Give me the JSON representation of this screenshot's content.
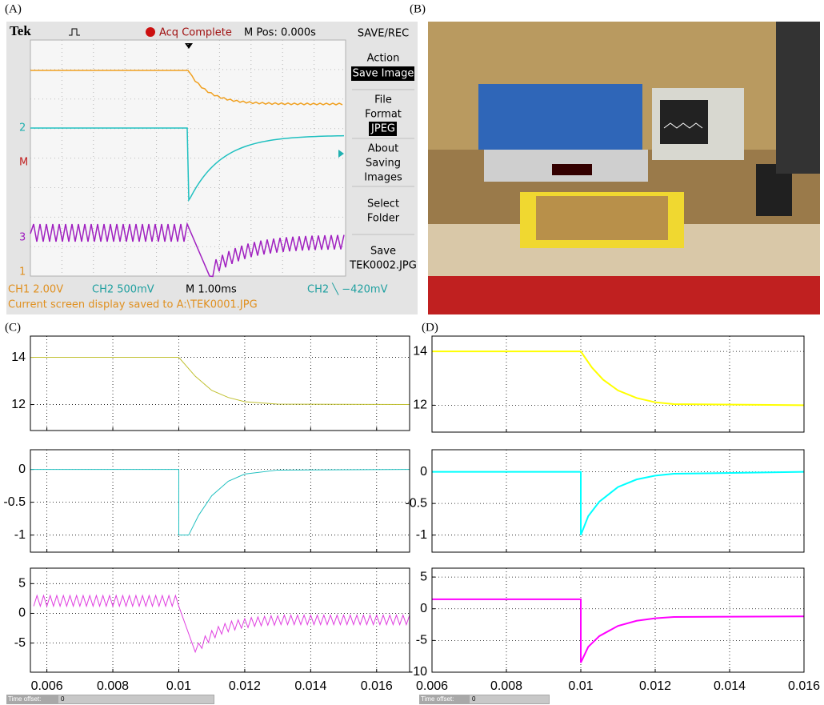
{
  "labels": [
    "(A)",
    "(B)",
    "(C)",
    "(D)"
  ],
  "scope": {
    "brand": "Tek",
    "status": "Acq Complete",
    "mpos": "M Pos: 0.000s",
    "menu": [
      "SAVE/REC",
      "Action",
      "Save Image",
      "File",
      "Format",
      "JPEG",
      "About",
      "Saving",
      "Images",
      "Select",
      "Folder",
      "Save",
      "TEK0002.JPG"
    ],
    "markers": [
      "2",
      "M",
      "3",
      "1"
    ],
    "status_line": [
      "CH1  2.00V",
      "CH2  500mV",
      "M 1.00ms",
      "CH2 ╲ −420mV"
    ],
    "message": "Current screen display saved to A:\\TEK0001.JPG"
  },
  "time_offset": {
    "label": "Time offset:",
    "value": "0"
  },
  "chart_data": [
    {
      "type": "line",
      "xlim": [
        0.0055,
        0.017
      ],
      "xticks": [
        0.006,
        0.008,
        0.01,
        0.012,
        0.014,
        0.016
      ],
      "ylim": [
        10.9,
        14.9
      ],
      "yticks": [
        12,
        14
      ],
      "grid": true,
      "x": [
        0.0055,
        0.01,
        0.0105,
        0.011,
        0.0115,
        0.012,
        0.013,
        0.017
      ],
      "series": [
        {
          "color": "#c0c030",
          "values": [
            14,
            14,
            13.2,
            12.6,
            12.3,
            12.12,
            12.02,
            12
          ]
        }
      ]
    },
    {
      "type": "line",
      "xlim": [
        0.0055,
        0.017
      ],
      "xticks": [
        0.006,
        0.008,
        0.01,
        0.012,
        0.014,
        0.016
      ],
      "ylim": [
        -1.26,
        0.3
      ],
      "yticks": [
        0,
        -0.5,
        -1
      ],
      "grid": true,
      "x": [
        0.0055,
        0.01,
        0.01,
        0.0103,
        0.0106,
        0.011,
        0.0115,
        0.012,
        0.013,
        0.017
      ],
      "series": [
        {
          "color": "#20c0c0",
          "values": [
            0,
            0,
            -1,
            -1,
            -0.7,
            -0.4,
            -0.18,
            -0.07,
            -0.01,
            0
          ]
        }
      ]
    },
    {
      "type": "line",
      "xlim": [
        0.0055,
        0.017
      ],
      "xticks": [
        0.006,
        0.008,
        0.01,
        0.012,
        0.014,
        0.016
      ],
      "ylim": [
        -9.9,
        7.6
      ],
      "yticks": [
        5,
        0,
        -5
      ],
      "grid": true,
      "x": [
        0.0056,
        0.0057,
        0.0058,
        0.0059,
        0.006,
        0.0061,
        0.0062,
        0.0063,
        0.0064,
        0.0065,
        0.0066,
        0.0067,
        0.0068,
        0.0069,
        0.007,
        0.0071,
        0.0072,
        0.0073,
        0.0074,
        0.0075,
        0.0076,
        0.0077,
        0.0078,
        0.0079,
        0.008,
        0.0081,
        0.0082,
        0.0083,
        0.0084,
        0.0085,
        0.0086,
        0.0087,
        0.0088,
        0.0089,
        0.009,
        0.0091,
        0.0092,
        0.0093,
        0.0094,
        0.0095,
        0.0096,
        0.0097,
        0.0098,
        0.0099,
        0.01,
        0.0105,
        0.0106,
        0.0107,
        0.0108,
        0.0109,
        0.011,
        0.0111,
        0.0112,
        0.0113,
        0.0114,
        0.0115,
        0.0116,
        0.0117,
        0.0118,
        0.0119,
        0.012,
        0.0121,
        0.0122,
        0.0123,
        0.0124,
        0.0125,
        0.0126,
        0.0127,
        0.0128,
        0.0129,
        0.013,
        0.0131,
        0.0132,
        0.0133,
        0.0134,
        0.0135,
        0.0136,
        0.0137,
        0.0138,
        0.0139,
        0.014,
        0.0141,
        0.0142,
        0.0143,
        0.0144,
        0.0145,
        0.0146,
        0.0147,
        0.0148,
        0.0149,
        0.015,
        0.0151,
        0.0152,
        0.0153,
        0.0154,
        0.0155,
        0.0156,
        0.0157,
        0.0158,
        0.0159,
        0.016,
        0.0161,
        0.0162,
        0.0163,
        0.0164,
        0.0165,
        0.0166,
        0.0167,
        0.0168,
        0.0169,
        0.017
      ],
      "series": [
        {
          "color": "#e040e0",
          "values": [
            1.2,
            3.0,
            1.2,
            3.0,
            1.2,
            3.0,
            1.2,
            3.0,
            1.2,
            3.0,
            1.2,
            3.0,
            1.2,
            3.0,
            1.2,
            3.0,
            1.2,
            3.0,
            1.2,
            3.0,
            1.2,
            3.0,
            1.2,
            3.0,
            1.2,
            3.0,
            1.2,
            3.0,
            1.2,
            3.0,
            1.2,
            3.0,
            1.2,
            3.0,
            1.2,
            3.0,
            1.2,
            3.0,
            1.2,
            3.0,
            1.2,
            3.0,
            1.2,
            3.0,
            1.2,
            -6.5,
            -5.0,
            -5.9,
            -3.8,
            -4.9,
            -2.9,
            -4.1,
            -2.2,
            -3.5,
            -1.7,
            -3.1,
            -1.3,
            -2.8,
            -1.1,
            -2.5,
            -0.9,
            -2.4,
            -0.7,
            -2.2,
            -0.6,
            -2.1,
            -0.5,
            -2.0,
            -0.4,
            -2.0,
            -0.4,
            -1.9,
            -0.3,
            -1.9,
            -0.3,
            -1.9,
            -0.3,
            -1.9,
            -0.3,
            -1.9,
            -0.3,
            -1.9,
            -0.3,
            -1.9,
            -0.3,
            -1.9,
            -0.3,
            -1.9,
            -0.3,
            -1.9,
            -0.3,
            -1.9,
            -0.3,
            -1.9,
            -0.3,
            -1.9,
            -0.3,
            -1.9,
            -0.3,
            -1.9,
            -0.3,
            -1.9,
            -0.3,
            -1.9,
            -0.3,
            -1.9,
            -0.3,
            -1.9,
            -0.3,
            -1.9,
            -0.3
          ]
        }
      ]
    },
    {
      "type": "line",
      "xlim": [
        0.006,
        0.016
      ],
      "xticks": [
        0.006,
        0.008,
        0.01,
        0.012,
        0.014,
        0.016
      ],
      "ylim": [
        11,
        14.57
      ],
      "yticks": [
        12,
        14
      ],
      "grid": true,
      "x": [
        0.006,
        0.01,
        0.0103,
        0.0106,
        0.011,
        0.0115,
        0.012,
        0.0125,
        0.016
      ],
      "series": [
        {
          "color": "#ffff00",
          "values": [
            14,
            14,
            13.4,
            12.95,
            12.55,
            12.27,
            12.11,
            12.04,
            12
          ]
        }
      ]
    },
    {
      "type": "line",
      "xlim": [
        0.006,
        0.016
      ],
      "xticks": [
        0.006,
        0.008,
        0.01,
        0.012,
        0.014,
        0.016
      ],
      "ylim": [
        -1.27,
        0.35
      ],
      "yticks": [
        0,
        -0.5,
        -1
      ],
      "grid": true,
      "x": [
        0.006,
        0.01,
        0.01,
        0.0102,
        0.0105,
        0.011,
        0.0115,
        0.012,
        0.0125,
        0.016
      ],
      "series": [
        {
          "color": "#00ffff",
          "values": [
            0,
            0,
            -1,
            -0.7,
            -0.47,
            -0.24,
            -0.12,
            -0.06,
            -0.03,
            0
          ]
        }
      ]
    },
    {
      "type": "line",
      "xlim": [
        0.006,
        0.016
      ],
      "xticks": [
        0.006,
        0.008,
        0.01,
        0.012,
        0.014,
        0.016
      ],
      "ylim": [
        -10,
        6.4
      ],
      "yticks": [
        5,
        0,
        -5,
        -10
      ],
      "grid": true,
      "x": [
        0.006,
        0.01,
        0.01,
        0.0102,
        0.0105,
        0.011,
        0.0115,
        0.012,
        0.0125,
        0.016
      ],
      "series": [
        {
          "color": "#ff00ff",
          "values": [
            1.5,
            1.5,
            -8.5,
            -6,
            -4.3,
            -2.7,
            -1.9,
            -1.5,
            -1.3,
            -1.2
          ]
        }
      ]
    }
  ]
}
